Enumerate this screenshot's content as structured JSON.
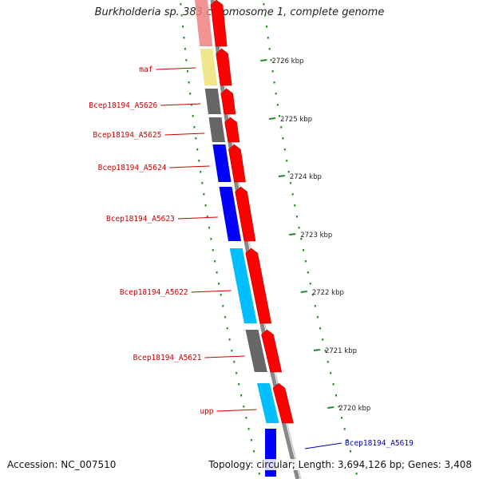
{
  "title": "Burkholderia sp. 383 chromosome 1, complete genome",
  "accession_text": "Accession: NC_007510",
  "summary_text": "Topology: circular; Length: 3,694,126 bp; Genes: 3,408",
  "colors": {
    "forward_label": "#cc0000",
    "reverse_label": "#0000cc",
    "arrow_fill": "#ff0000",
    "backbone": "#888888",
    "tick": "#228b22"
  },
  "ticks": [
    {
      "label": "2726 kbp"
    },
    {
      "label": "2725 kbp"
    },
    {
      "label": "2724 kbp"
    },
    {
      "label": "2723 kbp"
    },
    {
      "label": "2722 kbp"
    },
    {
      "label": "2721 kbp"
    },
    {
      "label": "2720 kbp"
    }
  ],
  "genes": [
    {
      "name": "",
      "cog_color": "#f08080",
      "strand": "forward"
    },
    {
      "name": "maf",
      "cog_color": "#f0e68c",
      "strand": "forward"
    },
    {
      "name": "Bcep18194_A5626",
      "cog_color": "#666666",
      "strand": "forward"
    },
    {
      "name": "Bcep18194_A5625",
      "cog_color": "#666666",
      "strand": "forward"
    },
    {
      "name": "Bcep18194_A5624",
      "cog_color": "#0000ff",
      "strand": "forward"
    },
    {
      "name": "Bcep18194_A5623",
      "cog_color": "#0000ff",
      "strand": "forward"
    },
    {
      "name": "Bcep18194_A5622",
      "cog_color": "#00bfff",
      "strand": "forward"
    },
    {
      "name": "Bcep18194_A5621",
      "cog_color": "#666666",
      "strand": "forward"
    },
    {
      "name": "upp",
      "cog_color": "#00bfff",
      "strand": "forward"
    },
    {
      "name": "Bcep18194_A5619",
      "cog_color": "#0000ff",
      "strand": "reverse"
    }
  ]
}
